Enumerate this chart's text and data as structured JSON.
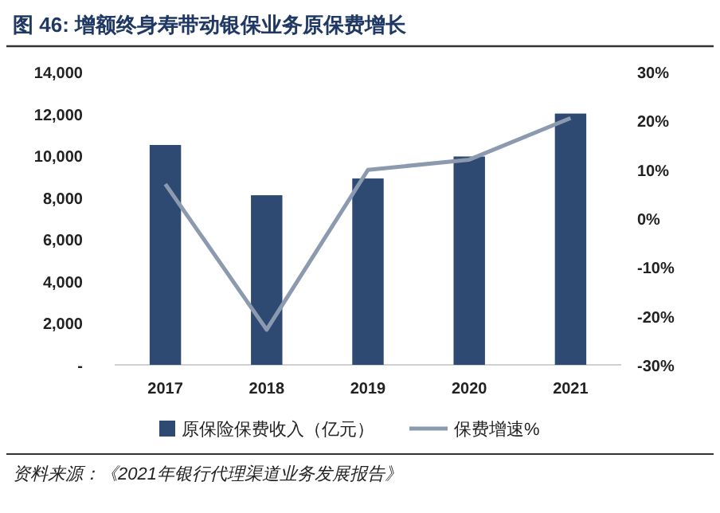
{
  "chart_data": {
    "type": "bar",
    "title": "图 46:  增额终身寿带动银保业务原保费增长",
    "categories": [
      "2017",
      "2018",
      "2019",
      "2020",
      "2021"
    ],
    "series": [
      {
        "name": "原保险保费收入（亿元）",
        "color": "#2e4a72",
        "values": [
          10500,
          8100,
          8900,
          9950,
          12000
        ]
      },
      {
        "name": "保费增速%",
        "type": "line",
        "axis": "y2",
        "color": "#8c9ab0",
        "values": [
          7.0,
          -22.8,
          9.9,
          12.0,
          20.5
        ]
      }
    ],
    "ylim": [
      0,
      14000
    ],
    "yticks": [
      {
        "value": 0,
        "label": "-"
      },
      {
        "value": 2000,
        "label": "2,000"
      },
      {
        "value": 4000,
        "label": "4,000"
      },
      {
        "value": 6000,
        "label": "6,000"
      },
      {
        "value": 8000,
        "label": "8,000"
      },
      {
        "value": 10000,
        "label": "10,000"
      },
      {
        "value": 12000,
        "label": "12,000"
      },
      {
        "value": 14000,
        "label": "14,000"
      }
    ],
    "y2lim": [
      -30,
      30
    ],
    "y2ticks": [
      {
        "value": -30,
        "label": "-30%"
      },
      {
        "value": -20,
        "label": "-20%"
      },
      {
        "value": -10,
        "label": "-10%"
      },
      {
        "value": 0,
        "label": "0%"
      },
      {
        "value": 10,
        "label": "10%"
      },
      {
        "value": 20,
        "label": "20%"
      },
      {
        "value": 30,
        "label": "30%"
      }
    ],
    "legend": "bottom",
    "annotations": [
      "资料来源：《2021年银行代理渠道业务发展报告》"
    ]
  }
}
